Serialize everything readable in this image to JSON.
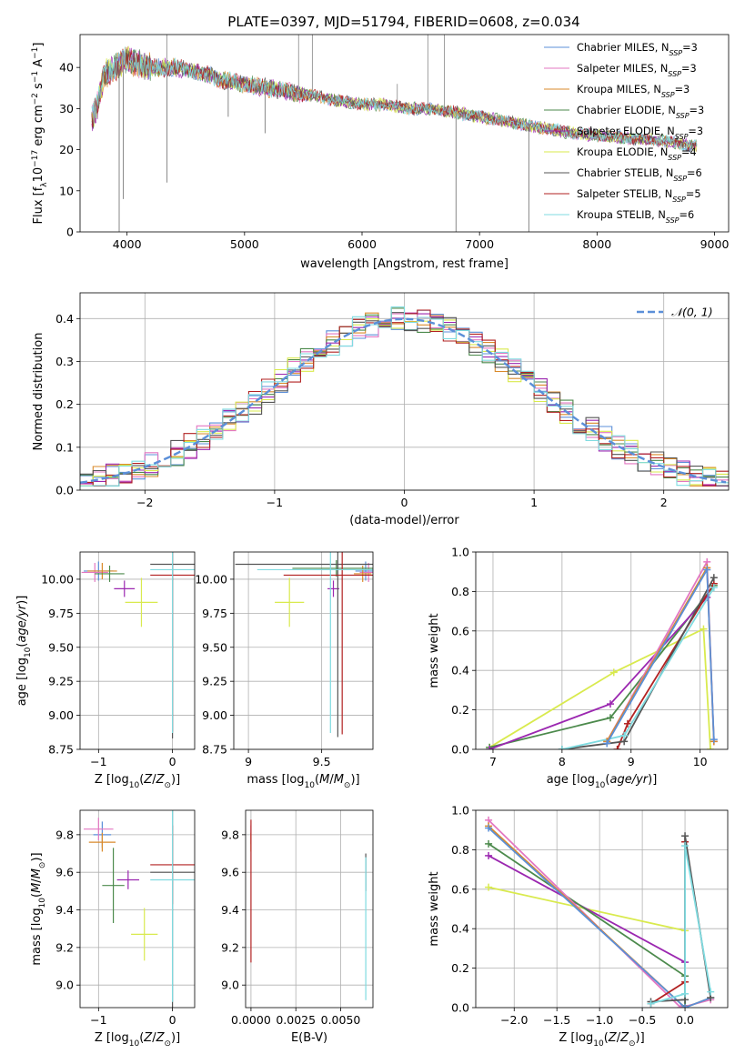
{
  "figure": {
    "title": "PLATE=0397, MJD=51794, FIBERID=0608, z=0.034"
  },
  "colors": {
    "chabrier_miles": "#5b8fd8",
    "salpeter_miles": "#e377c2",
    "kroupa_miles": "#d98a2b",
    "chabrier_elodie": "#4c8a4c",
    "salpeter_elodie": "#9b27b0",
    "kroupa_elodie": "#d9ea4e",
    "chabrier_stelib": "#555555",
    "salpeter_stelib": "#b22222",
    "kroupa_stelib": "#7fdbe0",
    "normal_curve": "#5b8fd8"
  },
  "chart_data": [
    {
      "id": "spectrum",
      "type": "line",
      "title": "PLATE=0397, MJD=51794, FIBERID=0608, z=0.034",
      "xlabel": "wavelength [Angstrom, rest frame]",
      "ylabel": "Flux [f_λ 10^-17 erg cm^-2 s^-1 A^-1]",
      "xlim": [
        3600,
        9120
      ],
      "ylim": [
        0,
        48
      ],
      "xticks": [
        4000,
        5000,
        6000,
        7000,
        8000,
        9000
      ],
      "yticks": [
        0,
        10,
        20,
        30,
        40
      ],
      "grid": false,
      "legend_position": "top-right",
      "continuum": {
        "x": [
          3700,
          3750,
          3800,
          3850,
          3900,
          3950,
          4000,
          4100,
          4200,
          4400,
          4600,
          4800,
          5000,
          5200,
          5400,
          5600,
          5800,
          6000,
          6200,
          6400,
          6600,
          6800,
          7000,
          7200,
          7400,
          7600,
          7800,
          8000,
          8200,
          8400,
          8600,
          8800,
          8850
        ],
        "y": [
          27,
          31,
          38,
          39,
          40,
          41,
          42,
          41,
          40,
          40,
          39,
          37,
          36,
          35,
          34,
          33,
          32,
          31,
          31,
          30,
          30,
          29,
          28,
          27,
          26,
          25,
          24,
          23.5,
          23,
          22.5,
          22,
          21,
          21
        ]
      },
      "absorption_lines": [
        {
          "x": 3933,
          "y": 0
        },
        {
          "x": 3968,
          "y": 8
        },
        {
          "x": 4340,
          "y": 12
        },
        {
          "x": 4861,
          "y": 28
        },
        {
          "x": 5175,
          "y": 24
        },
        {
          "x": 6800,
          "y": 0
        },
        {
          "x": 7420,
          "y": 0
        }
      ],
      "emission_spikes": [
        {
          "x": 4340,
          "y": 48
        },
        {
          "x": 5460,
          "y": 48
        },
        {
          "x": 5577,
          "y": 48
        },
        {
          "x": 6300,
          "y": 36
        },
        {
          "x": 6560,
          "y": 48
        },
        {
          "x": 6700,
          "y": 48
        }
      ],
      "series": [
        {
          "name": "Chabrier MILES, N_SSP=3",
          "legend": "Chabrier MILES, N",
          "n": "3",
          "color_key": "chabrier_miles"
        },
        {
          "name": "Salpeter MILES, N_SSP=3",
          "legend": "Salpeter MILES, N",
          "n": "3",
          "color_key": "salpeter_miles"
        },
        {
          "name": "Kroupa MILES, N_SSP=3",
          "legend": "Kroupa MILES, N",
          "n": "3",
          "color_key": "kroupa_miles"
        },
        {
          "name": "Chabrier ELODIE, N_SSP=3",
          "legend": "Chabrier ELODIE, N",
          "n": "3",
          "color_key": "chabrier_elodie"
        },
        {
          "name": "Salpeter ELODIE, N_SSP=3",
          "legend": "Salpeter ELODIE, N",
          "n": "3",
          "color_key": "salpeter_elodie"
        },
        {
          "name": "Kroupa ELODIE, N_SSP=4",
          "legend": "Kroupa ELODIE, N",
          "n": "4",
          "color_key": "kroupa_elodie"
        },
        {
          "name": "Chabrier STELIB, N_SSP=6",
          "legend": "Chabrier STELIB, N",
          "n": "6",
          "color_key": "chabrier_stelib"
        },
        {
          "name": "Salpeter STELIB, N_SSP=5",
          "legend": "Salpeter STELIB, N",
          "n": "5",
          "color_key": "salpeter_stelib"
        },
        {
          "name": "Kroupa STELIB, N_SSP=6",
          "legend": "Kroupa STELIB, N",
          "n": "6",
          "color_key": "kroupa_stelib"
        }
      ]
    },
    {
      "id": "residuals",
      "type": "histogram",
      "xlabel": "(data-model)/error",
      "ylabel": "Normed distribution",
      "xlim": [
        -2.5,
        2.5
      ],
      "ylim": [
        0,
        0.46
      ],
      "xticks": [
        -2,
        -1,
        0,
        1,
        2
      ],
      "yticks": [
        0.0,
        0.1,
        0.2,
        0.3,
        0.4
      ],
      "grid": true,
      "legend_position": "top-right",
      "legend_label": "N(0,1)",
      "bin_width": 0.1,
      "series_colors": [
        "chabrier_miles",
        "salpeter_miles",
        "kroupa_miles",
        "chabrier_elodie",
        "salpeter_elodie",
        "kroupa_elodie",
        "chabrier_stelib",
        "salpeter_stelib",
        "kroupa_stelib"
      ],
      "normal": {
        "mean": 0,
        "sigma": 1
      }
    },
    {
      "id": "age_vs_Z",
      "type": "errorbar",
      "xlabel": "Z [log10(Z/Z⊙)]",
      "ylabel": "age [log10(age/yr)]",
      "xlim": [
        -1.25,
        0.3
      ],
      "ylim": [
        8.75,
        10.2
      ],
      "xticks": [
        -1,
        0
      ],
      "yticks": [
        8.75,
        9.0,
        9.25,
        9.5,
        9.75,
        10.0
      ],
      "grid": true,
      "points": [
        {
          "c": "chabrier_miles",
          "x": -1.0,
          "y": 10.06,
          "xe": 0.2,
          "ye": 0.07
        },
        {
          "c": "salpeter_miles",
          "x": -1.05,
          "y": 10.05,
          "xe": 0.18,
          "ye": 0.07
        },
        {
          "c": "kroupa_miles",
          "x": -0.95,
          "y": 10.06,
          "xe": 0.2,
          "ye": 0.06
        },
        {
          "c": "chabrier_elodie",
          "x": -0.85,
          "y": 10.04,
          "xe": 0.2,
          "ye": 0.06
        },
        {
          "c": "salpeter_elodie",
          "x": -0.65,
          "y": 9.93,
          "xe": 0.14,
          "ye": 0.06
        },
        {
          "c": "kroupa_elodie",
          "x": -0.42,
          "y": 9.83,
          "xe": 0.22,
          "ye": 0.18
        },
        {
          "c": "chabrier_stelib",
          "x": 0.0,
          "y": 10.11,
          "xe": 0.3,
          "ye": 1.28
        },
        {
          "c": "salpeter_stelib",
          "x": 0.0,
          "y": 10.03,
          "xe": 0.3,
          "ye": 1.15
        },
        {
          "c": "kroupa_stelib",
          "x": 0.0,
          "y": 10.07,
          "xe": 0.3,
          "ye": 1.2
        }
      ]
    },
    {
      "id": "age_vs_mass",
      "type": "errorbar",
      "xlabel": "mass [log10(M/M⊙)]",
      "ylabel": "",
      "xlim": [
        8.9,
        9.85
      ],
      "ylim": [
        8.75,
        10.2
      ],
      "xticks": [
        9.0,
        9.5
      ],
      "yticks": [
        8.75,
        9.0,
        9.25,
        9.5,
        9.75,
        10.0
      ],
      "grid": true,
      "points": [
        {
          "c": "chabrier_miles",
          "x": 9.8,
          "y": 10.06,
          "xe": 0.07,
          "ye": 0.07
        },
        {
          "c": "salpeter_miles",
          "x": 9.82,
          "y": 10.05,
          "xe": 0.06,
          "ye": 0.07
        },
        {
          "c": "kroupa_miles",
          "x": 9.78,
          "y": 10.04,
          "xe": 0.06,
          "ye": 0.06
        },
        {
          "c": "chabrier_elodie",
          "x": 9.6,
          "y": 10.08,
          "xe": 0.3,
          "ye": 0.06
        },
        {
          "c": "salpeter_elodie",
          "x": 9.58,
          "y": 9.93,
          "xe": 0.04,
          "ye": 0.06
        },
        {
          "c": "kroupa_elodie",
          "x": 9.28,
          "y": 9.83,
          "xe": 0.1,
          "ye": 0.18
        },
        {
          "c": "chabrier_stelib",
          "x": 9.61,
          "y": 10.11,
          "xe": 0.7,
          "ye": 1.27
        },
        {
          "c": "salpeter_stelib",
          "x": 9.64,
          "y": 10.03,
          "xe": 0.4,
          "ye": 1.17
        },
        {
          "c": "kroupa_stelib",
          "x": 9.56,
          "y": 10.07,
          "xe": 0.5,
          "ye": 1.2
        }
      ]
    },
    {
      "id": "weight_vs_age",
      "type": "line",
      "xlabel": "age [log10(age/yr)]",
      "ylabel": "mass weight",
      "xlim": [
        6.75,
        10.4
      ],
      "ylim": [
        0,
        1.0
      ],
      "xticks": [
        7,
        8,
        9,
        10
      ],
      "yticks": [
        0.0,
        0.2,
        0.4,
        0.6,
        0.8,
        1.0
      ],
      "grid": true,
      "series": [
        {
          "c": "kroupa_elodie",
          "x": [
            6.95,
            8.75,
            10.05,
            10.15
          ],
          "y": [
            0.01,
            0.39,
            0.61,
            0.0
          ]
        },
        {
          "c": "chabrier_elodie",
          "x": [
            6.95,
            8.7,
            10.2
          ],
          "y": [
            0.01,
            0.16,
            0.83
          ]
        },
        {
          "c": "salpeter_elodie",
          "x": [
            6.95,
            8.7,
            10.1
          ],
          "y": [
            0.0,
            0.23,
            0.77
          ]
        },
        {
          "c": "salpeter_stelib",
          "x": [
            8.8,
            8.95,
            10.2
          ],
          "y": [
            0.0,
            0.13,
            0.84
          ]
        },
        {
          "c": "chabrier_stelib",
          "x": [
            8.0,
            8.9,
            10.2
          ],
          "y": [
            0.0,
            0.04,
            0.87
          ]
        },
        {
          "c": "kroupa_stelib",
          "x": [
            8.0,
            8.9,
            10.2
          ],
          "y": [
            0.0,
            0.07,
            0.82
          ]
        },
        {
          "c": "salpeter_miles",
          "x": [
            8.65,
            10.1,
            10.2
          ],
          "y": [
            0.04,
            0.95,
            0.04
          ]
        },
        {
          "c": "kroupa_miles",
          "x": [
            8.65,
            10.1,
            10.2
          ],
          "y": [
            0.04,
            0.92,
            0.04
          ]
        },
        {
          "c": "chabrier_miles",
          "x": [
            8.65,
            10.1,
            10.2
          ],
          "y": [
            0.03,
            0.91,
            0.05
          ]
        }
      ]
    },
    {
      "id": "mass_vs_Z",
      "type": "errorbar",
      "xlabel": "Z [log10(Z/Z⊙)]",
      "ylabel": "mass [log10(M/M⊙)]",
      "xlim": [
        -1.25,
        0.3
      ],
      "ylim": [
        8.88,
        9.93
      ],
      "xticks": [
        -1,
        0
      ],
      "yticks": [
        9.0,
        9.2,
        9.4,
        9.6,
        9.8
      ],
      "grid": true,
      "points": [
        {
          "c": "chabrier_miles",
          "x": -0.95,
          "y": 9.8,
          "xe": 0.12,
          "ye": 0.07
        },
        {
          "c": "salpeter_miles",
          "x": -1.0,
          "y": 9.83,
          "xe": 0.2,
          "ye": 0.06
        },
        {
          "c": "kroupa_miles",
          "x": -0.95,
          "y": 9.76,
          "xe": 0.18,
          "ye": 0.05
        },
        {
          "c": "chabrier_elodie",
          "x": -0.8,
          "y": 9.53,
          "xe": 0.15,
          "ye": 0.2
        },
        {
          "c": "salpeter_elodie",
          "x": -0.6,
          "y": 9.56,
          "xe": 0.15,
          "ye": 0.05
        },
        {
          "c": "kroupa_elodie",
          "x": -0.38,
          "y": 9.27,
          "xe": 0.18,
          "ye": 0.14
        },
        {
          "c": "chabrier_stelib",
          "x": 0.0,
          "y": 9.6,
          "xe": 0.3,
          "ye": 0.8
        },
        {
          "c": "salpeter_stelib",
          "x": 0.0,
          "y": 9.64,
          "xe": 0.3,
          "ye": 0.21
        },
        {
          "c": "kroupa_stelib",
          "x": 0.0,
          "y": 9.56,
          "xe": 0.3,
          "ye": 0.65
        }
      ]
    },
    {
      "id": "mass_vs_ebv",
      "type": "errorbar",
      "xlabel": "E(B-V)",
      "ylabel": "",
      "xlim": [
        -0.0003,
        0.0068
      ],
      "ylim": [
        8.88,
        9.93
      ],
      "xticks": [
        0.0,
        0.0025,
        0.005
      ],
      "xticklabels": [
        "0.0000",
        "0.0025",
        "0.0050"
      ],
      "yticks": [
        9.0,
        9.2,
        9.4,
        9.6,
        9.8
      ],
      "grid": true,
      "points": [
        {
          "c": "salpeter_miles",
          "x": 0.0,
          "y": 9.8,
          "xe": 0,
          "ye": 0.05
        },
        {
          "c": "kroupa_miles",
          "x": 0.0,
          "y": 9.76,
          "xe": 0,
          "ye": 0.05
        },
        {
          "c": "salpeter_stelib",
          "x": 0.0,
          "y": 9.5,
          "xe": 0,
          "ye": 0.38
        },
        {
          "c": "chabrier_stelib",
          "x": 0.0064,
          "y": 9.6,
          "xe": 0,
          "ye": 0.1
        },
        {
          "c": "kroupa_stelib",
          "x": 0.0064,
          "y": 9.3,
          "xe": 0,
          "ye": 0.38
        }
      ]
    },
    {
      "id": "weight_vs_Z",
      "type": "line",
      "xlabel": "Z [log10(Z/Z⊙)]",
      "ylabel": "mass weight",
      "xlim": [
        -2.45,
        0.5
      ],
      "ylim": [
        0,
        1.0
      ],
      "xticks": [
        -2.0,
        -1.5,
        -1.0,
        -0.5,
        0.0
      ],
      "xticklabels": [
        "−2.0",
        "−1.5",
        "−1.0",
        "−0.5",
        "0.0"
      ],
      "yticks": [
        0.0,
        0.2,
        0.4,
        0.6,
        0.8,
        1.0
      ],
      "grid": true,
      "series": [
        {
          "c": "kroupa_elodie",
          "x": [
            -2.3,
            0.0
          ],
          "y": [
            0.61,
            0.39
          ]
        },
        {
          "c": "salpeter_elodie",
          "x": [
            -2.3,
            0.0
          ],
          "y": [
            0.77,
            0.23
          ]
        },
        {
          "c": "chabrier_elodie",
          "x": [
            -2.3,
            0.0,
            0.0
          ],
          "y": [
            0.83,
            0.16,
            0.01
          ]
        },
        {
          "c": "salpeter_miles",
          "x": [
            -2.3,
            -0.05,
            0.3
          ],
          "y": [
            0.95,
            0.0,
            0.04
          ]
        },
        {
          "c": "kroupa_miles",
          "x": [
            -2.3,
            0.0,
            0.3
          ],
          "y": [
            0.92,
            0.0,
            0.05
          ]
        },
        {
          "c": "chabrier_miles",
          "x": [
            -2.3,
            0.0,
            0.3
          ],
          "y": [
            0.91,
            0.0,
            0.05
          ]
        },
        {
          "c": "salpeter_stelib",
          "x": [
            -0.4,
            0.0,
            0.0
          ],
          "y": [
            0.02,
            0.13,
            0.84
          ]
        },
        {
          "c": "chabrier_stelib",
          "x": [
            -0.4,
            0.0,
            0.0,
            0.3
          ],
          "y": [
            0.03,
            0.04,
            0.87,
            0.05
          ]
        },
        {
          "c": "kroupa_stelib",
          "x": [
            -0.4,
            0.0,
            0.0,
            0.3
          ],
          "y": [
            0.02,
            0.07,
            0.82,
            0.08
          ]
        }
      ]
    }
  ]
}
